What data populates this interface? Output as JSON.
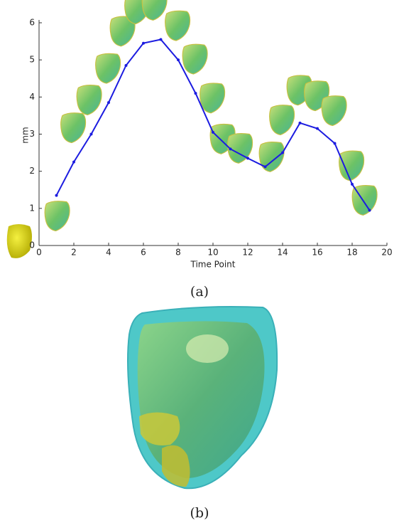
{
  "chart_data": {
    "type": "line",
    "xlabel": "Time Point",
    "ylabel": "mm",
    "x": [
      1,
      2,
      3,
      4,
      5,
      6,
      7,
      8,
      9,
      10,
      11,
      12,
      13,
      14,
      15,
      16,
      17,
      18,
      19
    ],
    "series": [
      {
        "name": null,
        "color": "#1c1ce0",
        "values": [
          1.35,
          2.25,
          3.0,
          3.85,
          4.85,
          5.45,
          5.55,
          5.0,
          4.1,
          3.05,
          2.6,
          2.35,
          2.12,
          2.5,
          3.3,
          3.15,
          2.75,
          1.65,
          0.95
        ]
      }
    ],
    "xlim": [
      0,
      20
    ],
    "xticks": [
      0,
      2,
      4,
      6,
      8,
      10,
      12,
      14,
      16,
      18,
      20
    ],
    "ylim": [
      0,
      6
    ],
    "yticks": [
      0,
      1,
      2,
      3,
      4,
      5,
      6
    ]
  },
  "captions": {
    "a": "(a)",
    "b": "(b)"
  }
}
